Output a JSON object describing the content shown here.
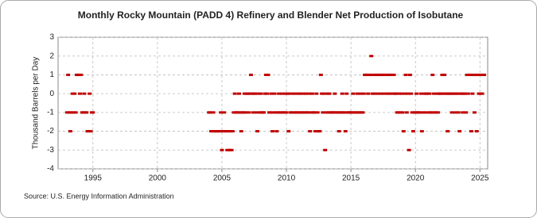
{
  "chart_data": {
    "type": "scatter",
    "title": "Monthly Rocky Mountain (PADD 4) Refinery and Blender Net Production of Isobutane",
    "y_label": "Thousand Barrels per Day",
    "source": "Source: U.S. Energy Information Administration",
    "xlim": [
      1992.3,
      2025.6
    ],
    "xticks": [
      1995,
      2000,
      2005,
      2010,
      2015,
      2020,
      2025
    ],
    "ylim": [
      -4,
      3
    ],
    "yticks": [
      -4,
      -3,
      -2,
      -1,
      0,
      1,
      2,
      3
    ],
    "grid": true,
    "series": [
      {
        "name": "Isobutane",
        "color": "#c00000",
        "x": [
          1993,
          1993.08,
          1993.17,
          1993.25,
          1993.33,
          1993.42,
          1993.5,
          1993.58,
          1993.67,
          1993.75,
          1993.83,
          1993.92,
          1994,
          1994.08,
          1994.17,
          1994.25,
          1994.33,
          1994.42,
          1994.5,
          1994.58,
          1994.67,
          1994.75,
          1994.83,
          1994.92,
          1995,
          2004,
          2004.08,
          2004.17,
          2004.25,
          2004.33,
          2004.42,
          2004.5,
          2004.58,
          2004.67,
          2004.75,
          2004.83,
          2004.92,
          2005,
          2005.08,
          2005.17,
          2005.25,
          2005.33,
          2005.42,
          2005.5,
          2005.58,
          2005.67,
          2005.75,
          2005.83,
          2005.92,
          2006,
          2006.08,
          2006.17,
          2006.25,
          2006.33,
          2006.42,
          2006.5,
          2006.58,
          2006.67,
          2006.75,
          2006.83,
          2006.92,
          2007,
          2007.08,
          2007.17,
          2007.25,
          2007.33,
          2007.42,
          2007.5,
          2007.58,
          2007.67,
          2007.75,
          2007.83,
          2007.92,
          2008,
          2008.08,
          2008.17,
          2008.25,
          2008.33,
          2008.42,
          2008.5,
          2008.58,
          2008.67,
          2008.75,
          2008.83,
          2008.92,
          2009,
          2009.08,
          2009.17,
          2009.25,
          2009.33,
          2009.42,
          2009.5,
          2009.58,
          2009.67,
          2009.75,
          2009.83,
          2009.92,
          2010,
          2010.08,
          2010.17,
          2010.25,
          2010.33,
          2010.42,
          2010.5,
          2010.58,
          2010.67,
          2010.75,
          2010.83,
          2010.92,
          2011,
          2011.08,
          2011.17,
          2011.25,
          2011.33,
          2011.42,
          2011.5,
          2011.58,
          2011.67,
          2011.75,
          2011.83,
          2011.92,
          2012,
          2012.08,
          2012.17,
          2012.25,
          2012.33,
          2012.42,
          2012.5,
          2012.58,
          2012.67,
          2012.75,
          2012.83,
          2012.92,
          2013,
          2013.08,
          2013.17,
          2013.25,
          2013.33,
          2013.42,
          2013.5,
          2013.58,
          2013.67,
          2013.75,
          2013.83,
          2013.92,
          2014,
          2014.08,
          2014.17,
          2014.25,
          2014.33,
          2014.42,
          2014.5,
          2014.58,
          2014.67,
          2014.75,
          2014.83,
          2014.92,
          2015,
          2015.08,
          2015.17,
          2015.25,
          2015.33,
          2015.42,
          2015.5,
          2015.58,
          2015.67,
          2015.75,
          2015.83,
          2015.92,
          2016,
          2016.08,
          2016.17,
          2016.25,
          2016.33,
          2016.42,
          2016.5,
          2016.58,
          2016.67,
          2016.75,
          2016.83,
          2016.92,
          2017,
          2017.08,
          2017.17,
          2017.25,
          2017.33,
          2017.42,
          2017.5,
          2017.58,
          2017.67,
          2017.75,
          2017.83,
          2017.92,
          2018,
          2018.08,
          2018.17,
          2018.25,
          2018.33,
          2018.42,
          2018.5,
          2018.58,
          2018.67,
          2018.75,
          2018.83,
          2018.92,
          2019,
          2019.08,
          2019.17,
          2019.25,
          2019.33,
          2019.42,
          2019.5,
          2019.58,
          2019.67,
          2019.75,
          2019.83,
          2019.92,
          2020,
          2020.08,
          2020.17,
          2020.25,
          2020.33,
          2020.42,
          2020.5,
          2020.58,
          2020.67,
          2020.75,
          2020.83,
          2020.92,
          2021,
          2021.08,
          2021.17,
          2021.25,
          2021.33,
          2021.42,
          2021.5,
          2021.58,
          2021.67,
          2021.75,
          2021.83,
          2021.92,
          2022,
          2022.08,
          2022.17,
          2022.25,
          2022.33,
          2022.42,
          2022.5,
          2022.58,
          2022.67,
          2022.75,
          2022.83,
          2022.92,
          2023,
          2023.08,
          2023.17,
          2023.25,
          2023.33,
          2023.42,
          2023.5,
          2023.58,
          2023.67,
          2023.75,
          2023.83,
          2023.92,
          2024,
          2024.08,
          2024.17,
          2024.25,
          2024.33,
          2024.42,
          2024.5,
          2024.58,
          2024.67,
          2024.75,
          2024.83,
          2024.92,
          2025,
          2025.08,
          2025.17,
          2025.25,
          2025.33
        ],
        "values": [
          -1,
          1,
          -1,
          -2,
          -1,
          0,
          -1,
          0,
          -1,
          1,
          1,
          1,
          0,
          1,
          -1,
          -1,
          0,
          -1,
          -1,
          -2,
          -2,
          0,
          -2,
          -1,
          -1,
          -1,
          -1,
          -2,
          -2,
          -1,
          -2,
          -2,
          -2,
          -2,
          -2,
          -2,
          -1,
          -3,
          -2,
          -1,
          -2,
          -2,
          -3,
          -2,
          -3,
          -2,
          -3,
          -2,
          -1,
          0,
          -1,
          -1,
          -1,
          0,
          -1,
          -2,
          -1,
          -1,
          0,
          -1,
          0,
          0,
          -1,
          0,
          1,
          0,
          -1,
          0,
          0,
          -1,
          -2,
          0,
          -1,
          0,
          -1,
          -1,
          -1,
          0,
          1,
          0,
          1,
          -1,
          -1,
          0,
          -2,
          -1,
          0,
          -1,
          -2,
          -1,
          0,
          -1,
          -1,
          0,
          -1,
          -1,
          0,
          -1,
          0,
          -2,
          0,
          -1,
          -1,
          0,
          -1,
          0,
          -1,
          -1,
          0,
          -1,
          0,
          -1,
          -1,
          0,
          -1,
          0,
          -1,
          -1,
          0,
          -2,
          -1,
          0,
          -1,
          -1,
          -2,
          0,
          -1,
          -2,
          -2,
          1,
          0,
          -1,
          0,
          -3,
          -1,
          0,
          -1,
          0,
          -1,
          -1,
          -1,
          -1,
          0,
          -1,
          -1,
          -1,
          -2,
          -1,
          -1,
          0,
          -1,
          -1,
          -2,
          0,
          -1,
          -1,
          -1,
          -1,
          -1,
          0,
          -1,
          -1,
          -1,
          0,
          -1,
          -1,
          0,
          -1,
          -1,
          0,
          1,
          1,
          1,
          0,
          1,
          1,
          2,
          0,
          1,
          0,
          1,
          1,
          0,
          1,
          1,
          0,
          1,
          1,
          0,
          1,
          1,
          0,
          1,
          0,
          1,
          1,
          0,
          1,
          0,
          0,
          -1,
          -1,
          0,
          -1,
          0,
          -1,
          -2,
          0,
          1,
          -1,
          0,
          -3,
          1,
          0,
          -1,
          -2,
          -1,
          -1,
          0,
          -1,
          -1,
          -1,
          0,
          -2,
          -1,
          0,
          -1,
          0,
          0,
          -1,
          0,
          -1,
          -1,
          1,
          0,
          -1,
          -1,
          0,
          -1,
          0,
          0,
          0,
          1,
          0,
          1,
          0,
          0,
          -2,
          0,
          0,
          0,
          -1,
          0,
          0,
          -1,
          0,
          0,
          -1,
          -2,
          0,
          0,
          -1,
          0,
          0,
          -1,
          1,
          0,
          1,
          1,
          -2,
          0,
          1,
          -1,
          1,
          -2,
          1,
          0,
          0,
          1,
          0,
          1,
          1
        ]
      }
    ]
  }
}
